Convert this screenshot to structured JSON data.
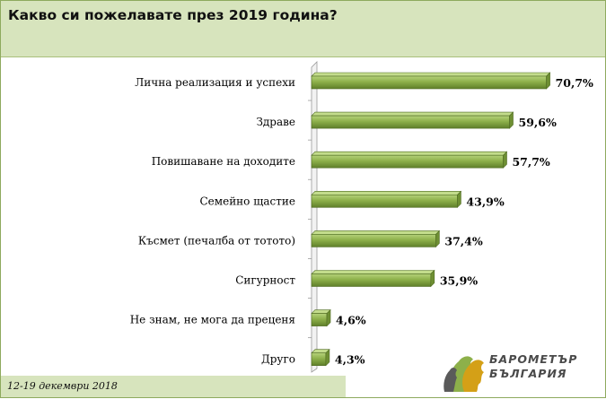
{
  "header": {
    "title": "Какво си пожелавате през 2019 година?"
  },
  "footer": {
    "date": "12-19 декември 2018"
  },
  "logo": {
    "line1": "БАРОМЕТЪР",
    "line2": "БЪЛГАРИЯ"
  },
  "colors": {
    "bar": "#8db04a",
    "header_bg": "#d7e4bd"
  },
  "chart_data": {
    "type": "bar",
    "orientation": "horizontal",
    "categories": [
      "Лична реализация и успехи",
      "Здраве",
      "Повишаване на доходите",
      "Семейно щастие",
      "Късмет (печалба от тотото)",
      "Сигурност",
      "Не знам, не мога да преценя",
      "Друго"
    ],
    "values": [
      70.7,
      59.6,
      57.7,
      43.9,
      37.4,
      35.9,
      4.6,
      4.3
    ],
    "value_labels": [
      "70,7%",
      "59,6%",
      "57,7%",
      "43,9%",
      "37,4%",
      "35,9%",
      "4,6%",
      "4,3%"
    ],
    "title": "Какво си пожелавате през 2019 година?",
    "xlabel": "",
    "ylabel": "",
    "xlim": [
      0,
      100
    ],
    "grid": false,
    "legend": "none"
  }
}
